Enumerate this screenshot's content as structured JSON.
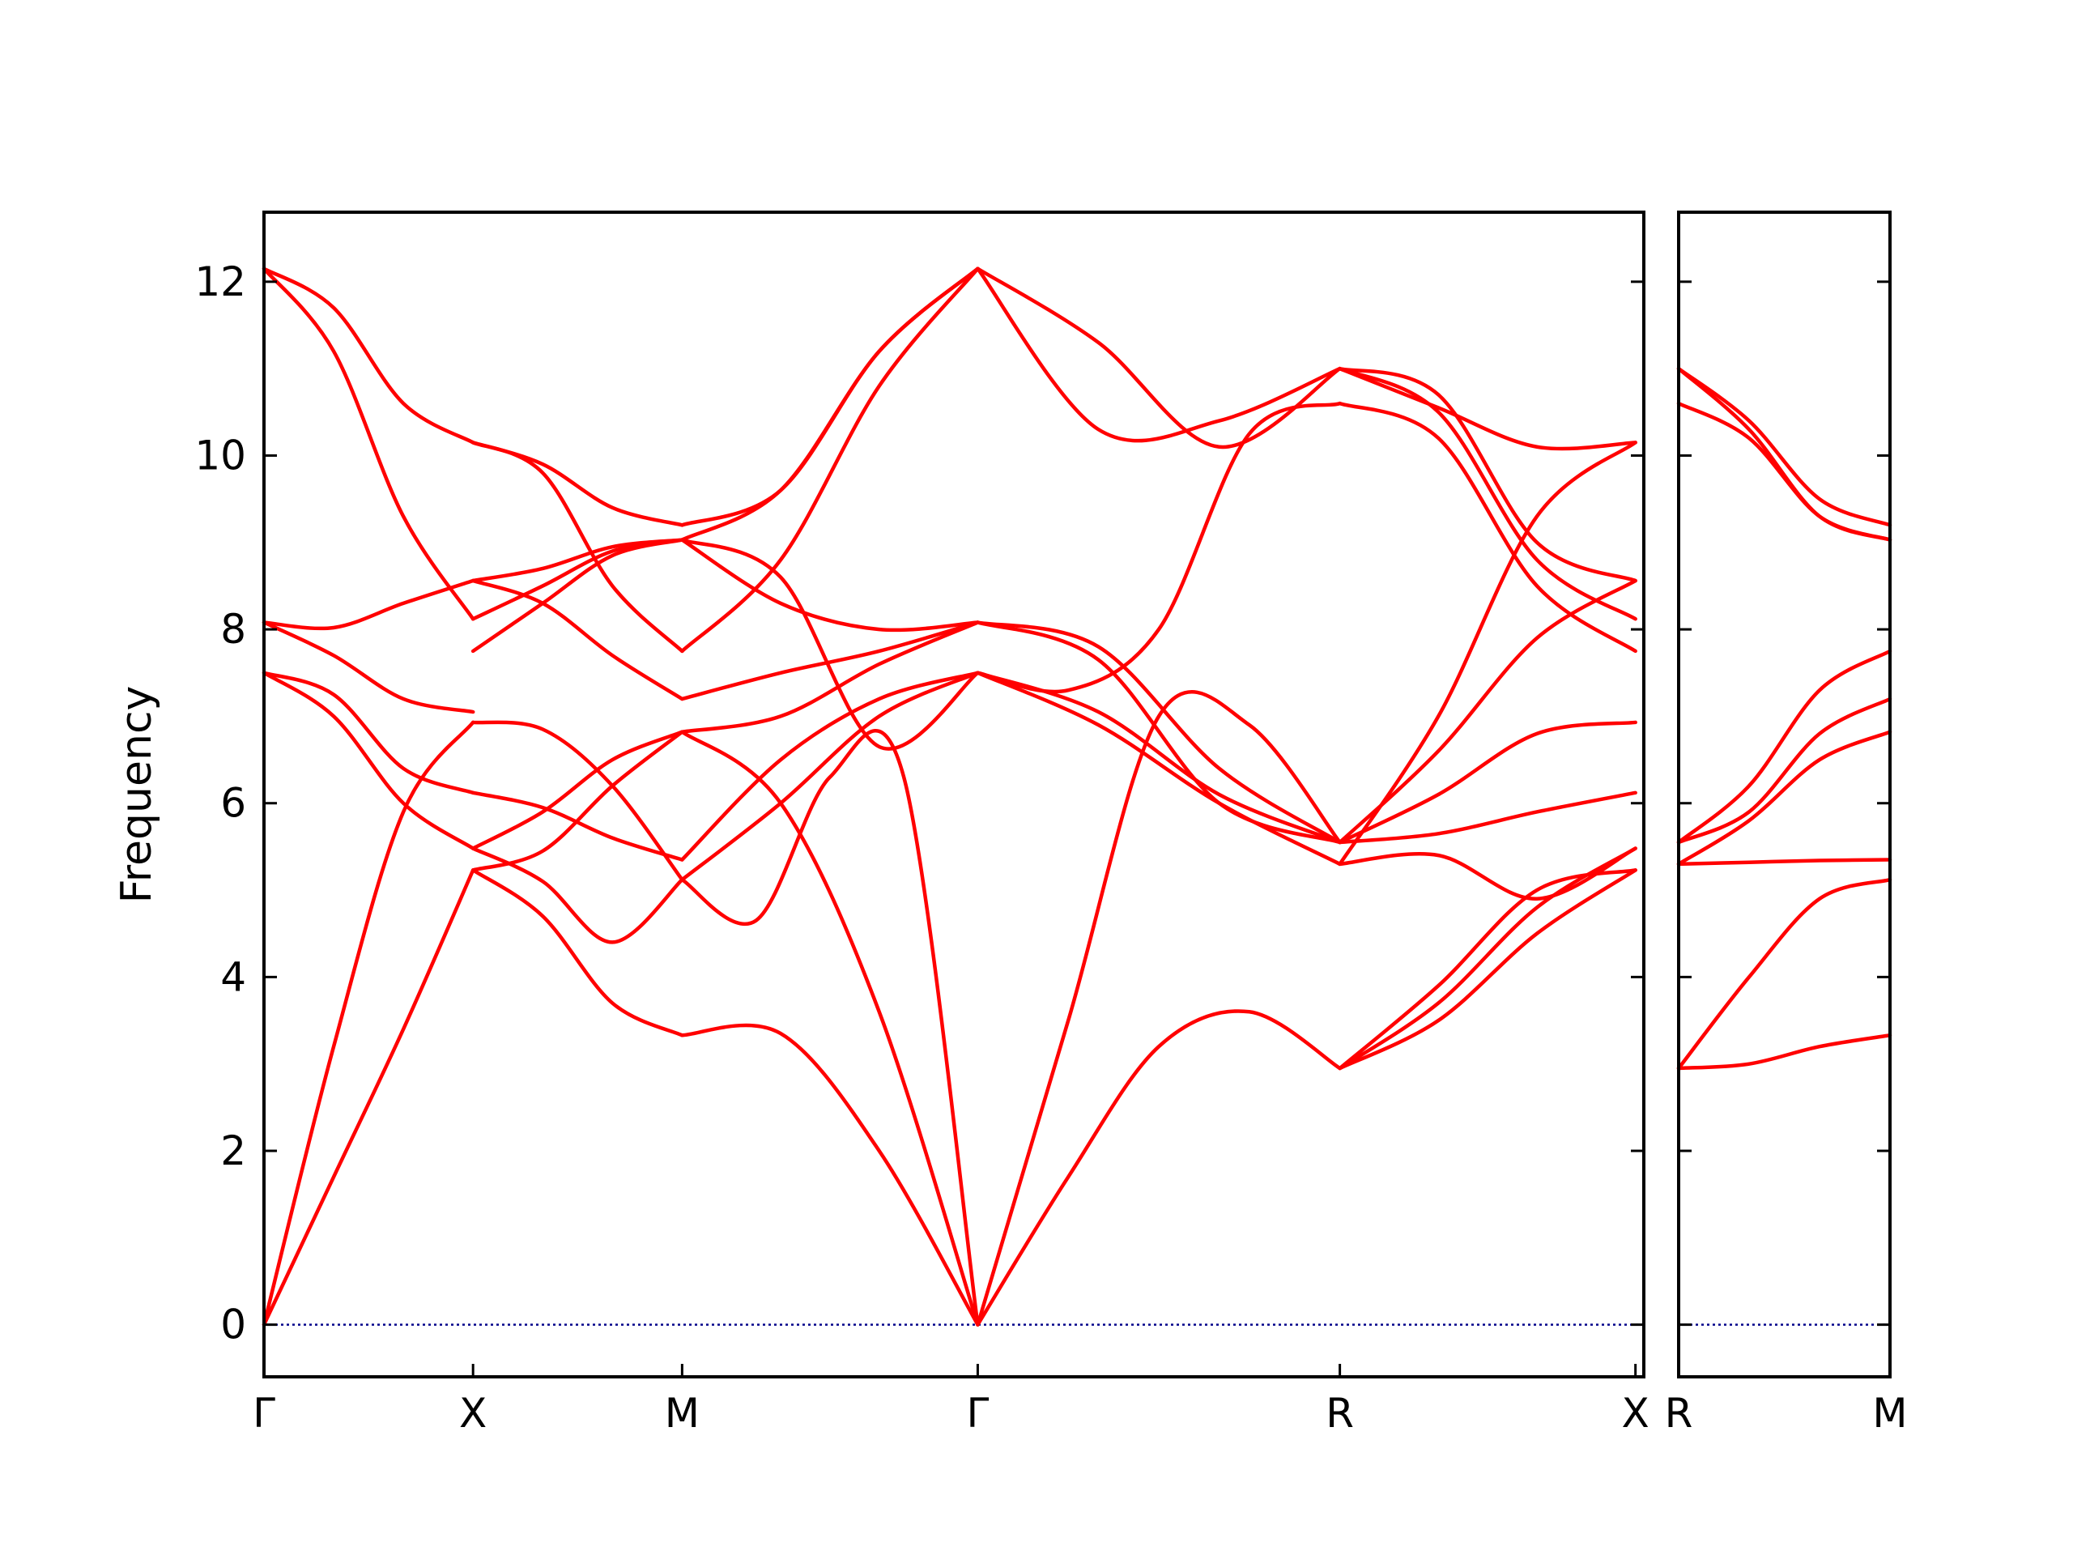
{
  "chart_data": {
    "type": "line",
    "ylabel": "Frequency",
    "ylim": [
      -0.6,
      12.8
    ],
    "y_ticks": [
      0,
      2,
      4,
      6,
      8,
      10,
      12
    ],
    "y_tick_labels": [
      "0",
      "2",
      "4",
      "6",
      "8",
      "10",
      "12"
    ],
    "grid": false,
    "colors": {
      "bands": "#ff0000",
      "zero_line": "#00008b",
      "axes": "#000000"
    },
    "panels": [
      {
        "name": "panel-main",
        "xlim": [
          0,
          6.6
        ],
        "x_ticks": [
          0,
          1,
          2,
          3.414,
          5.146,
          6.56
        ],
        "x_tick_labels": [
          "Γ",
          "X",
          "M",
          "Γ",
          "R",
          "X"
        ],
        "segments": [
          {
            "from": "Γ",
            "to": "X",
            "x0": 0,
            "x1": 1,
            "bands": [
              [
                0.0,
                1.7,
                3.4,
                5.23
              ],
              [
                0.0,
                3.2,
                5.9,
                6.93
              ],
              [
                7.5,
                7.25,
                6.4,
                6.12
              ],
              [
                7.5,
                7.0,
                6.0,
                5.48
              ],
              [
                8.08,
                7.7,
                7.2,
                7.05
              ],
              [
                8.08,
                8.02,
                8.3,
                8.56
              ],
              [
                12.15,
                11.2,
                9.3,
                8.12
              ],
              [
                12.15,
                11.7,
                10.6,
                10.15
              ]
            ]
          },
          {
            "from": "X",
            "to": "M",
            "x0": 1,
            "x1": 2,
            "bands": [
              [
                5.23,
                4.7,
                3.7,
                3.33
              ],
              [
                5.48,
                5.1,
                4.4,
                5.12
              ],
              [
                5.23,
                5.45,
                6.2,
                6.82
              ],
              [
                5.48,
                5.9,
                6.5,
                6.82
              ],
              [
                6.12,
                5.95,
                5.6,
                5.35
              ],
              [
                6.93,
                6.85,
                6.2,
                5.12
              ],
              [
                7.75,
                8.3,
                8.85,
                9.03
              ],
              [
                8.56,
                8.3,
                7.7,
                7.2
              ],
              [
                8.12,
                8.5,
                8.9,
                9.03
              ],
              [
                8.56,
                8.7,
                8.95,
                9.03
              ],
              [
                10.15,
                9.8,
                8.5,
                7.75
              ],
              [
                10.15,
                9.9,
                9.4,
                9.2
              ]
            ]
          },
          {
            "from": "M",
            "to": "Γ",
            "x0": 2,
            "x1": 3.414,
            "bands": [
              [
                3.33,
                3.35,
                2.0,
                0.0
              ],
              [
                6.82,
                6.0,
                3.6,
                0.0
              ],
              [
                5.12,
                4.65,
                6.3,
                6.3,
                0.0
              ],
              [
                5.35,
                6.5,
                7.2,
                7.5
              ],
              [
                5.12,
                6.0,
                7.0,
                7.5
              ],
              [
                6.82,
                7.0,
                7.6,
                8.08
              ],
              [
                7.2,
                7.5,
                7.75,
                8.08
              ],
              [
                9.03,
                8.6,
                6.65,
                7.5
              ],
              [
                9.03,
                8.3,
                8.0,
                8.08
              ],
              [
                7.75,
                8.8,
                10.8,
                12.15
              ],
              [
                9.03,
                9.6,
                11.2,
                12.15
              ],
              [
                9.2,
                9.6,
                11.2,
                12.15
              ]
            ]
          },
          {
            "from": "Γ",
            "to": "R",
            "x0": 3.414,
            "x1": 5.146,
            "bands": [
              [
                0.0,
                1.7,
                3.2,
                3.6,
                2.95
              ],
              [
                0.0,
                3.5,
                7.0,
                6.9,
                5.55
              ],
              [
                7.5,
                6.9,
                6.0,
                5.3
              ],
              [
                7.5,
                7.05,
                6.1,
                5.55
              ],
              [
                8.08,
                7.65,
                6.0,
                5.55
              ],
              [
                8.08,
                7.8,
                6.4,
                5.55
              ],
              [
                12.15,
                10.3,
                10.4,
                11.0
              ],
              [
                12.15,
                11.3,
                10.1,
                11.0
              ],
              [
                7.5,
                7.3,
                8.0,
                10.25,
                10.6
              ]
            ]
          },
          {
            "from": "R",
            "to": "X",
            "x0": 5.146,
            "x1": 6.56,
            "bands": [
              [
                2.95,
                3.5,
                4.5,
                5.23
              ],
              [
                2.95,
                3.7,
                4.8,
                5.48
              ],
              [
                2.95,
                3.9,
                5.0,
                5.23
              ],
              [
                5.3,
                5.4,
                4.9,
                5.48
              ],
              [
                5.55,
                5.65,
                5.9,
                6.12
              ],
              [
                5.55,
                6.1,
                6.8,
                6.93
              ],
              [
                5.55,
                6.6,
                7.9,
                8.56
              ],
              [
                5.3,
                7.0,
                9.3,
                10.15
              ],
              [
                10.6,
                10.2,
                8.5,
                7.75
              ],
              [
                11.0,
                10.5,
                8.8,
                8.12
              ],
              [
                11.0,
                10.7,
                9.0,
                8.56
              ],
              [
                11.0,
                10.55,
                10.1,
                10.15
              ]
            ]
          }
        ]
      },
      {
        "name": "panel-side",
        "xlim": [
          0,
          1
        ],
        "x_ticks": [
          0,
          1
        ],
        "x_tick_labels": [
          "R",
          "M"
        ],
        "segments": [
          {
            "from": "R",
            "to": "M",
            "x0": 0,
            "x1": 1,
            "bands": [
              [
                2.95,
                3.0,
                3.2,
                3.33
              ],
              [
                2.95,
                4.0,
                4.9,
                5.12
              ],
              [
                5.3,
                5.32,
                5.34,
                5.35
              ],
              [
                5.3,
                5.8,
                6.5,
                6.82
              ],
              [
                5.55,
                5.9,
                6.8,
                7.2
              ],
              [
                5.55,
                6.2,
                7.3,
                7.75
              ],
              [
                10.6,
                10.2,
                9.3,
                9.03
              ],
              [
                11.0,
                10.3,
                9.3,
                9.03
              ],
              [
                11.0,
                10.4,
                9.5,
                9.2
              ]
            ]
          }
        ]
      }
    ]
  }
}
